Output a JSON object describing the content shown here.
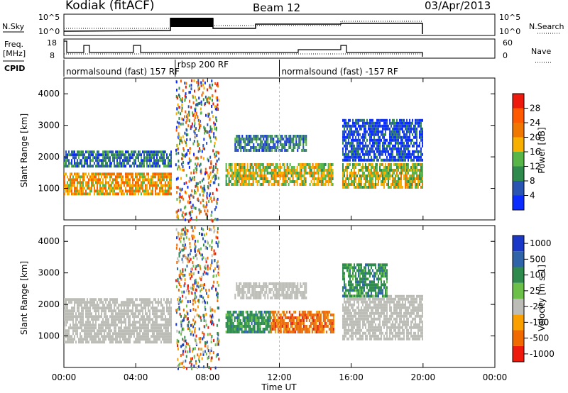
{
  "header": {
    "station": "Kodiak (fitACF)",
    "beam": "Beam 12",
    "date": "03/Apr/2013"
  },
  "top_panels": {
    "nsky_label": "N.Sky",
    "nsearch_label": "N.Search",
    "nsky_ticks": [
      "10^5",
      "10^0"
    ],
    "nsearch_ticks": [
      "10^5",
      "10^0"
    ],
    "freq_label_line1": "Freq.",
    "freq_label_line2": "[MHz]",
    "freq_ticks": [
      "18",
      "8"
    ],
    "nave_label": "Nave",
    "nave_ticks": [
      "60",
      "0"
    ],
    "cpid_label": "CPID",
    "cpid_segments": [
      {
        "text": "normalsound (fast) 157 RF",
        "start_hour": 0,
        "end_hour": 6.2
      },
      {
        "text": "rbsp 200 RF",
        "start_hour": 6.2,
        "end_hour": 12.0
      },
      {
        "text": "normalsound (fast) -157 RF",
        "start_hour": 12.0,
        "end_hour": 24.0
      }
    ]
  },
  "x_axis": {
    "title": "Time UT",
    "ticks": [
      "00:00",
      "04:00",
      "08:00",
      "12:00",
      "16:00",
      "20:00",
      "00:00"
    ]
  },
  "power_panel": {
    "ylabel": "Slant Range [km]",
    "yticks": [
      "1000",
      "2000",
      "3000",
      "4000"
    ],
    "colorbar_title": "Power [dB]",
    "colorbar_ticks": [
      "4",
      "8",
      "12",
      "16",
      "20",
      "24",
      "28"
    ],
    "colors": [
      "#0a2cff",
      "#2a55b3",
      "#2f8a4d",
      "#58b548",
      "#f7b000",
      "#f07800",
      "#ff5a00",
      "#ee1b0c"
    ]
  },
  "velocity_panel": {
    "ylabel": "Slant Range [km]",
    "yticks": [
      "1000",
      "2000",
      "3000",
      "4000"
    ],
    "colorbar_title": "Velocity [m s-1]",
    "colorbar_ticks": [
      "1000",
      "500",
      "100",
      "25",
      "-25",
      "-100",
      "-500",
      "-1000"
    ],
    "colors": [
      "#1a38c8",
      "#2f64a8",
      "#2f8a4d",
      "#6cc04a",
      "#bdbdb8",
      "#f9a000",
      "#f06a00",
      "#ee1b0c"
    ]
  },
  "chart_data": {
    "type": "heatmap",
    "x_range_hours": [
      0,
      24
    ],
    "y_range_km": [
      0,
      4500
    ],
    "data_end_hour": 20.0,
    "power_echo_bands_km": [
      {
        "start_hour": 0.0,
        "end_hour": 6.0,
        "range_km": [
          800,
          1500
        ],
        "power_db": 22
      },
      {
        "start_hour": 0.0,
        "end_hour": 6.0,
        "range_km": [
          1700,
          2200
        ],
        "power_db": 12
      },
      {
        "start_hour": 9.0,
        "end_hour": 15.0,
        "range_km": [
          1100,
          1800
        ],
        "power_db": 20
      },
      {
        "start_hour": 9.5,
        "end_hour": 13.5,
        "range_km": [
          2200,
          2700
        ],
        "power_db": 13
      },
      {
        "start_hour": 15.5,
        "end_hour": 20.0,
        "range_km": [
          1000,
          1800
        ],
        "power_db": 18
      },
      {
        "start_hour": 15.5,
        "end_hour": 20.0,
        "range_km": [
          1900,
          3200
        ],
        "power_db": 8
      }
    ],
    "velocity_echo_bands_km": [
      {
        "start_hour": 0.0,
        "end_hour": 6.0,
        "range_km": [
          800,
          2200
        ],
        "velocity": 0
      },
      {
        "start_hour": 9.0,
        "end_hour": 11.5,
        "range_km": [
          1100,
          1800
        ],
        "velocity": 300
      },
      {
        "start_hour": 11.5,
        "end_hour": 15.0,
        "range_km": [
          1100,
          1800
        ],
        "velocity": -300
      },
      {
        "start_hour": 9.5,
        "end_hour": 13.5,
        "range_km": [
          2200,
          2700
        ],
        "velocity": 0
      },
      {
        "start_hour": 15.5,
        "end_hour": 20.0,
        "range_km": [
          900,
          2300
        ],
        "velocity": 0
      },
      {
        "start_hour": 15.5,
        "end_hour": 18.0,
        "range_km": [
          2300,
          3300
        ],
        "velocity": 200
      }
    ],
    "noise_interval_hours": [
      6.2,
      8.6
    ]
  }
}
